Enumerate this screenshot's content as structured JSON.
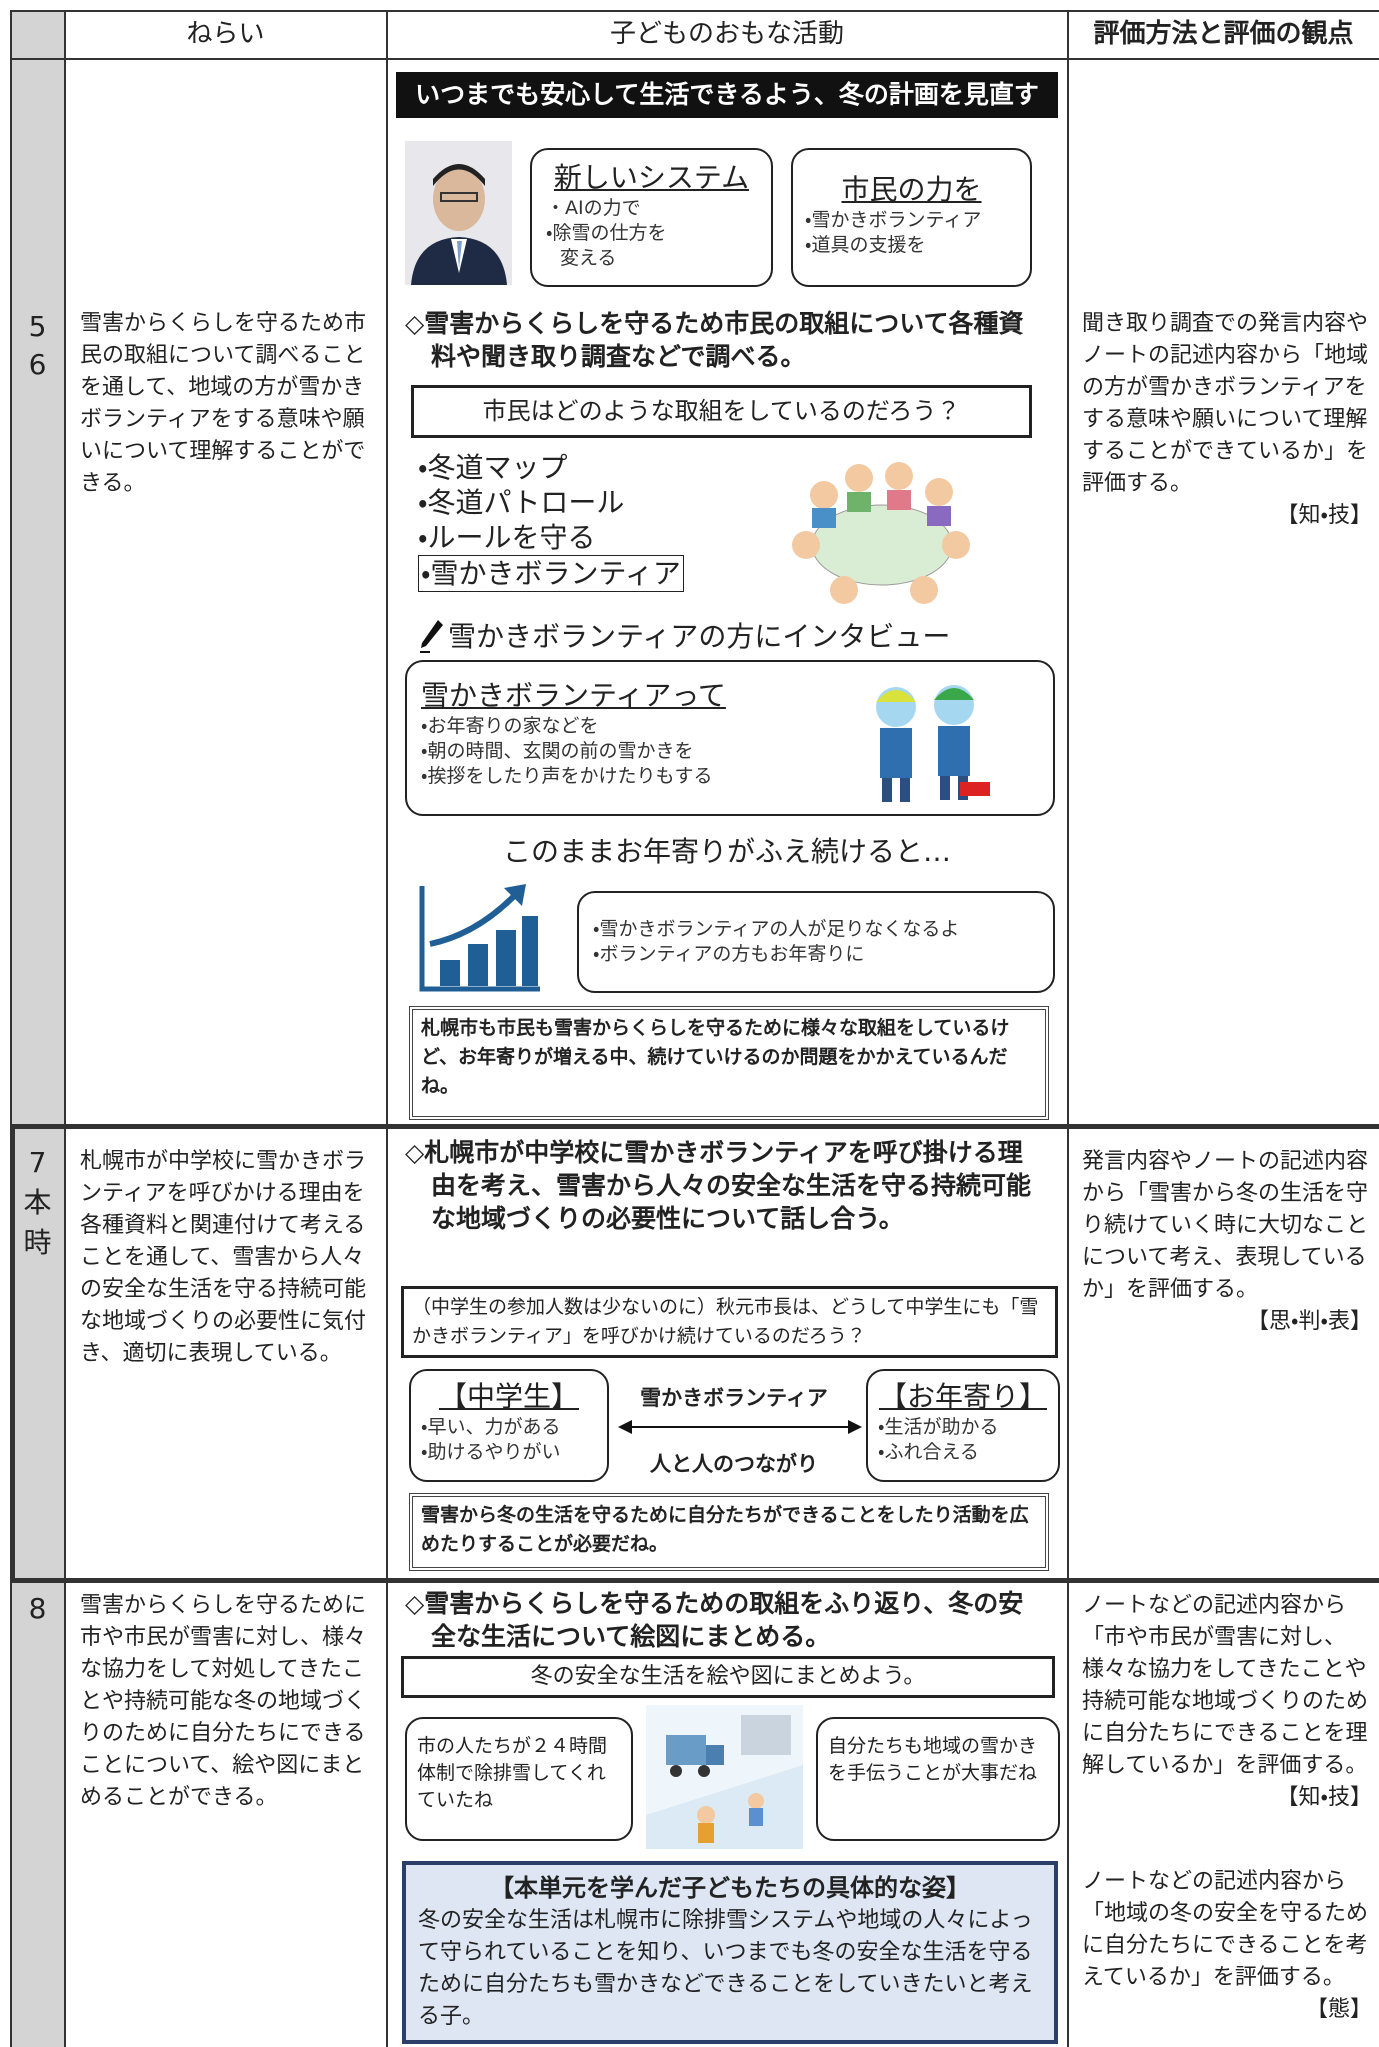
{
  "header": [
    "ねらい",
    "子どものおもな活動",
    "評価方法と評価の観点"
  ],
  "rows": [
    {
      "number": [
        "5",
        "6"
      ],
      "aim": "雪害からくらしを守るため市民の取組について調べることを通して、地域の方が雪かきボランティアをする意味や願いについて理解することができる。",
      "activities": {
        "title": "いつまでも安心して生活できるよう、冬の計画を見直す",
        "bubble1": {
          "title": "新しいシステム",
          "items": [
            "・AIの力で",
            "・除雪の仕方を",
            "変える"
          ]
        },
        "bubble2": {
          "title": "市民の力を",
          "items": [
            "・雪かきボランティア",
            "・道具の支援を"
          ]
        },
        "task": "◇雪害からくらしを守るため市民の取組について各種資料や聞き取り調査などで調べる。",
        "question": "市民はどのような取組をしているのだろう？",
        "list": [
          "・冬道マップ",
          "・冬道パトロール",
          "・ルールを守る",
          "・雪かきボランティア"
        ],
        "interview": "雪かきボランティアの方にインタビュー",
        "volunteer": {
          "title": "雪かきボランティアって",
          "items": [
            "・お年寄りの家などを",
            "・朝の時間、玄関の前の雪かきを",
            "・挨拶をしたり声をかけたりもする"
          ]
        },
        "concern": "このままお年寄りがふえ続けると…",
        "concern_items": [
          "・雪かきボランティアの人が足りなくなるよ",
          "・ボランティアの方もお年寄りに"
        ],
        "summary": "札幌市も市民も雪害からくらしを守るために様々な取組をしているけど、お年寄りが増える中、続けていけるのか問題をかかえているんだね。"
      },
      "evaluation": [
        {
          "text": "聞き取り調査での発言内容やノートの記述内容から「地域の方が雪かきボランティアをする意味や願いについて理解することができているか」を評価する。",
          "viewpoint": "【知・技】"
        }
      ]
    },
    {
      "number": [
        "7",
        "本",
        "時"
      ],
      "aim": "札幌市が中学校に雪かきボランティアを呼びかける理由を各種資料と関連付けて考えることを通して、雪害から人々の安全な生活を守る持続可能な地域づくりの必要性に気付き、適切に表現している。",
      "activities": {
        "task": "◇札幌市が中学校に雪かきボランティアを呼び掛ける理由を考え、雪害から人々の安全な生活を守る持続可能な地域づくりの必要性について話し合う。",
        "question": "（中学生の参加人数は少ないのに）秋元市長は、どうして中学生にも「雪かきボランティア」を呼びかけ続けているのだろう？",
        "left": {
          "title": "【中学生】",
          "items": [
            "・早い、力がある",
            "・助けるやりがい"
          ]
        },
        "center_top": "雪かきボランティア",
        "center_bottom": "人と人のつながり",
        "right": {
          "title": "【お年寄り】",
          "items": [
            "・生活が助かる",
            "・ふれ合える"
          ]
        },
        "summary": "雪害から冬の生活を守るために自分たちができることをしたり活動を広めたりすることが必要だね。"
      },
      "evaluation": [
        {
          "text": "発言内容やノートの記述内容から「雪害から冬の生活を守り続けていく時に大切なことについて考え、表現しているか」を評価する。",
          "viewpoint": "【思・判・表】"
        }
      ]
    },
    {
      "number": [
        "8"
      ],
      "aim": "雪害からくらしを守るために市や市民が雪害に対し、様々な協力をして対処してきたことや持続可能な冬の地域づくりのために自分たちにできることについて、絵や図にまとめることができる。",
      "activities": {
        "task": "◇雪害からくらしを守るための取組をふり返り、冬の安全な生活について絵図にまとめる。",
        "question": "冬の安全な生活を絵や図にまとめよう。",
        "left_speech": "市の人たちが２４時間体制で除排雪してくれていたね",
        "right_speech": "自分たちも地域の雪かきを手伝うことが大事だね",
        "final_title": "【本単元を学んだ子どもたちの具体的な姿】",
        "final_text": "冬の安全な生活は札幌市に除排雪システムや地域の人々によって守られていることを知り、いつまでも冬の安全な生活を守るために自分たちも雪かきなどできることをしていきたいと考える子。"
      },
      "evaluation": [
        {
          "text": "ノートなどの記述内容から「市や市民が雪害に対し、様々な協力をしてきたことや持続可能な地域づくりのために自分たちにできることを理解しているか」を評価する。",
          "viewpoint": "【知・技】"
        },
        {
          "text": "ノートなどの記述内容から「地域の冬の安全を守るために自分たちにできることを考えているか」を評価する。",
          "viewpoint": "【態】"
        }
      ]
    }
  ]
}
